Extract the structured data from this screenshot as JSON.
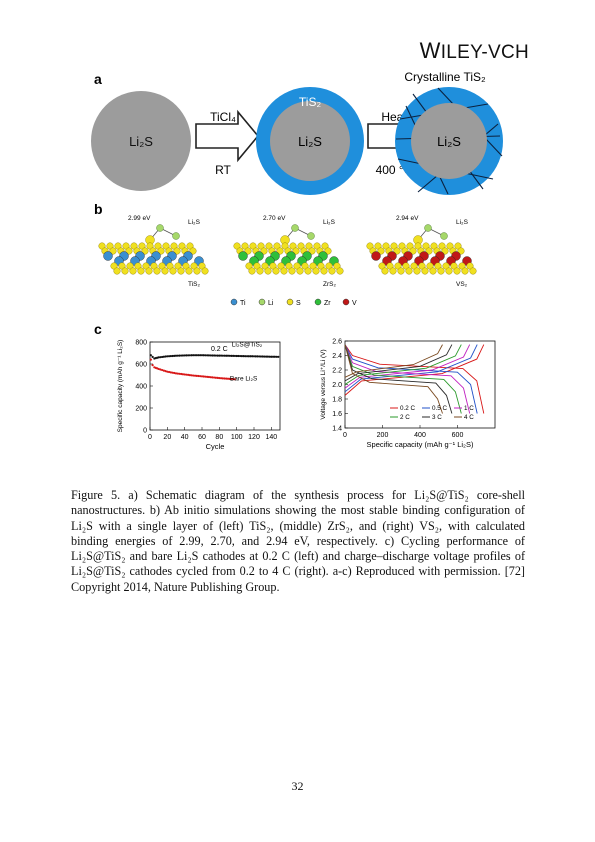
{
  "header": {
    "publisher_w": "W",
    "publisher_rest": "ILEY",
    "publisher_suffix": "-VCH"
  },
  "figure": {
    "panel_a": {
      "label": "a",
      "core": "Li₂S",
      "reagent": "TiCl₄",
      "condition1": "RT",
      "shell": "TiS₂",
      "step2": "Heat",
      "condition2": "400 °C",
      "result_title": "Crystalline TiS₂"
    },
    "panel_b": {
      "label": "b",
      "structures": [
        {
          "energy": "2.99 eV",
          "adsorbate": "Li₂S",
          "substrate": "TiS₂",
          "metal_color": "#3a8fd0"
        },
        {
          "energy": "2.70 eV",
          "adsorbate": "Li₂S",
          "substrate": "ZrS₂",
          "metal_color": "#2fbf3a"
        },
        {
          "energy": "2.94 eV",
          "adsorbate": "Li₂S",
          "substrate": "VS₂",
          "metal_color": "#c01818"
        }
      ],
      "legend": [
        {
          "symbol": "Ti",
          "color": "#3a8fd0"
        },
        {
          "symbol": "Li",
          "color": "#a6d86a"
        },
        {
          "symbol": "S",
          "color": "#f0e020"
        },
        {
          "symbol": "Zr",
          "color": "#2fbf3a"
        },
        {
          "symbol": "V",
          "color": "#c01818"
        }
      ]
    },
    "panel_c": {
      "label": "c"
    }
  },
  "chart_data": [
    {
      "type": "line",
      "xlabel": "Cycle",
      "ylabel": "Specific capacity (mAh g⁻¹ Li₂S)",
      "xlim": [
        0,
        150
      ],
      "ylim": [
        0,
        800
      ],
      "xticks": [
        0,
        20,
        40,
        60,
        80,
        100,
        120,
        140
      ],
      "yticks": [
        0,
        200,
        400,
        600,
        800
      ],
      "annotation": "0.2 C",
      "series": [
        {
          "name": "Li₂S@TiS₂",
          "color": "#111111",
          "x": [
            1,
            5,
            10,
            20,
            30,
            40,
            50,
            60,
            70,
            80,
            90,
            100,
            110,
            120,
            130,
            140,
            150
          ],
          "y": [
            680,
            650,
            660,
            670,
            675,
            678,
            680,
            680,
            678,
            676,
            675,
            673,
            671,
            670,
            668,
            666,
            665
          ]
        },
        {
          "name": "Bare Li₂S",
          "color": "#d81818",
          "x": [
            1,
            3,
            5,
            10,
            20,
            30,
            40,
            50,
            60,
            70,
            80,
            90,
            100
          ],
          "y": [
            640,
            590,
            570,
            555,
            530,
            515,
            505,
            495,
            488,
            480,
            472,
            466,
            460
          ]
        }
      ]
    },
    {
      "type": "line",
      "xlabel": "Specific capacity (mAh g⁻¹ Li₂S)",
      "ylabel": "Voltage versus Li⁺/Li (V)",
      "xlim": [
        0,
        800
      ],
      "ylim": [
        1.4,
        2.6
      ],
      "xticks": [
        0,
        200,
        400,
        600
      ],
      "yticks": [
        1.4,
        1.6,
        1.8,
        2.0,
        2.2,
        2.4,
        2.6
      ],
      "legend": [
        "0.2 C",
        "0.5 C",
        "1 C",
        "2 C",
        "3 C",
        "4 C"
      ],
      "series": [
        {
          "name": "0.2 C",
          "color": "#d81818",
          "capacity": 740
        },
        {
          "name": "0.5 C",
          "color": "#2050c8",
          "capacity": 705
        },
        {
          "name": "1 C",
          "color": "#c020c0",
          "capacity": 665
        },
        {
          "name": "2 C",
          "color": "#2a9a2a",
          "capacity": 620
        },
        {
          "name": "3 C",
          "color": "#2a2a2a",
          "capacity": 570
        },
        {
          "name": "4 C",
          "color": "#7a4a20",
          "capacity": 520
        }
      ]
    }
  ],
  "caption": "Figure 5. a) Schematic diagram of the synthesis process for Li₂S@TiS₂ core-shell nanostructures. b) Ab initio simulations showing the most stable binding configuration of Li₂S with a single layer of (left) TiS₂, (middle) ZrS₂, and (right) VS₂, with calculated binding energies of 2.99, 2.70, and 2.94 eV, respectively. c) Cycling performance of Li₂S@TiS₂ and bare Li₂S cathodes at 0.2 C (left) and charge–discharge voltage profiles of Li₂S@TiS₂ cathodes cycled from 0.2 to 4 C (right). a-c) Reproduced with permission. [72] Copyright 2014, Nature Publishing Group.",
  "page_number": "32"
}
